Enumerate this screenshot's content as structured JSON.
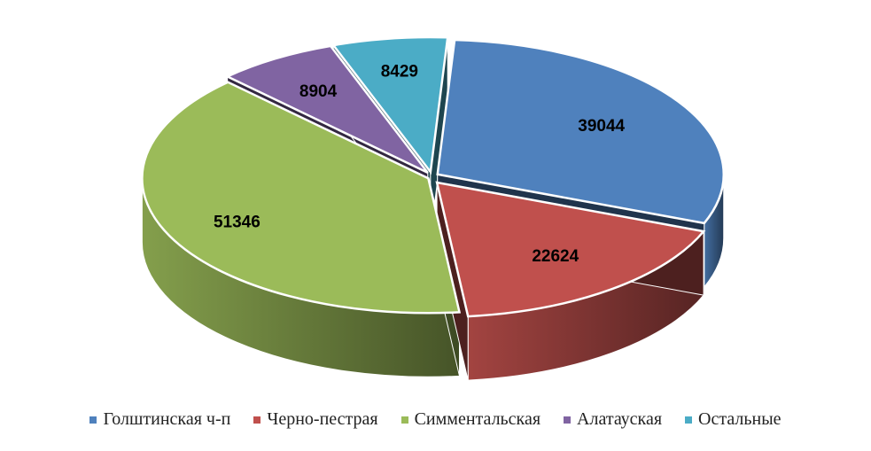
{
  "chart_data": {
    "type": "pie",
    "style": "3d-exploded",
    "categories": [
      "Голштинская ч-п",
      "Черно-пестрая",
      "Симментальская",
      "Алатауская",
      "Остальные"
    ],
    "values": [
      39044,
      22624,
      51346,
      8904,
      8429
    ],
    "data_labels": [
      "39044",
      "22624",
      "51346",
      "8904",
      "8429"
    ],
    "colors": [
      "#4F81BD",
      "#C0504D",
      "#9BBB59",
      "#8064A2",
      "#4BACC6"
    ],
    "legend_position": "bottom"
  }
}
